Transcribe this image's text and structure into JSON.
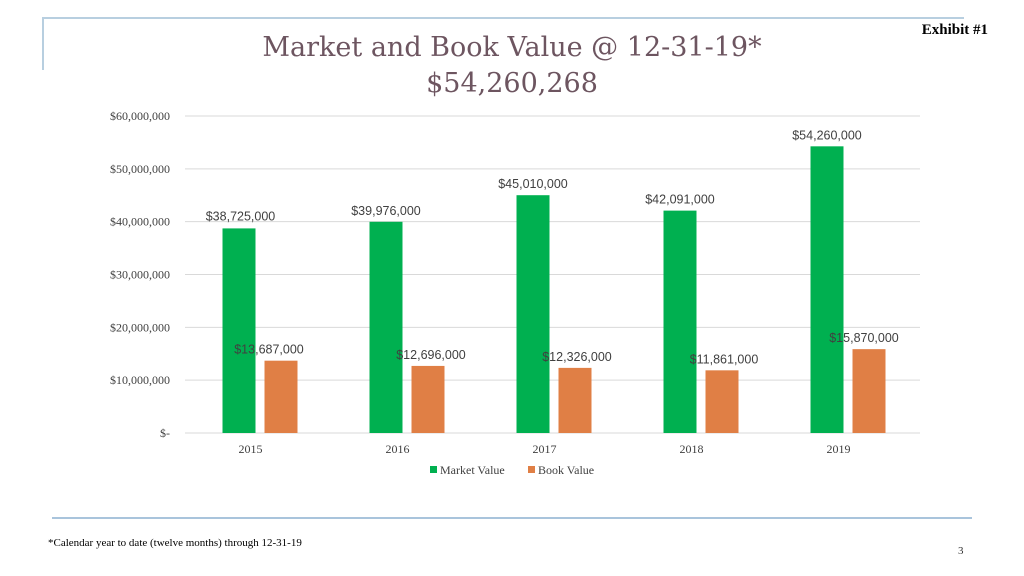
{
  "exhibit_label": "Exhibit #1",
  "title_line1": "Market and Book Value  @ 12-31-19*",
  "title_line2": "$54,260,268",
  "footnote": "*Calendar year to date (twelve months) through 12-31-19",
  "page_number": "3",
  "colors": {
    "market": "#00b050",
    "book": "#e07f45",
    "grid": "#d9d9d9",
    "frame": "#b8cfe0"
  },
  "chart_data": {
    "type": "bar",
    "title": "Market and Book Value @ 12-31-19*",
    "categories": [
      "2015",
      "2016",
      "2017",
      "2018",
      "2019"
    ],
    "series": [
      {
        "name": "Market Value",
        "color": "#00b050",
        "values": [
          38725000,
          39976000,
          45010000,
          42091000,
          54260000
        ],
        "labels": [
          "$38,725,000",
          "$39,976,000",
          "$45,010,000",
          "$42,091,000",
          "$54,260,000"
        ]
      },
      {
        "name": "Book Value",
        "color": "#e07f45",
        "values": [
          13687000,
          12696000,
          12326000,
          11861000,
          15870000
        ],
        "labels": [
          "$13,687,000",
          "$12,696,000",
          "$12,326,000",
          "$11,861,000",
          "$15,870,000"
        ]
      }
    ],
    "y_ticks": [
      0,
      10000000,
      20000000,
      30000000,
      40000000,
      50000000,
      60000000
    ],
    "y_tick_labels": [
      "$-",
      "$10,000,000",
      "$20,000,000",
      "$30,000,000",
      "$40,000,000",
      "$50,000,000",
      "$60,000,000"
    ],
    "ylim": [
      0,
      60000000
    ],
    "xlabel": "",
    "ylabel": "",
    "grid": true,
    "legend_position": "bottom"
  }
}
